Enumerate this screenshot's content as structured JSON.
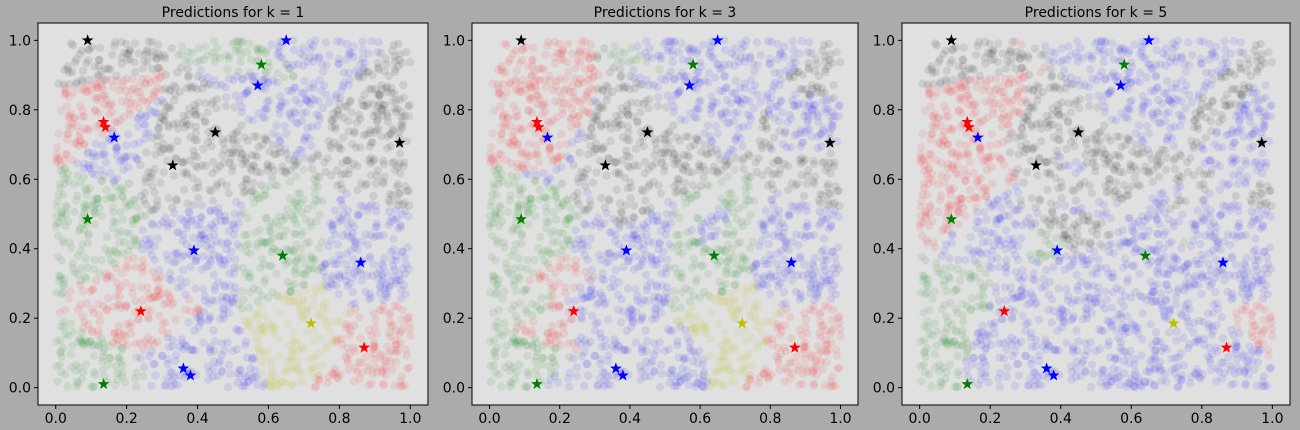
{
  "figure": {
    "background": "#ababab",
    "panel_background": "#e0e0e0",
    "class_colors": {
      "red": "#ff0000",
      "green": "#008000",
      "blue": "#0000ff",
      "black": "#000000",
      "yellow": "#bfbf00"
    }
  },
  "chart_data": [
    {
      "type": "scatter",
      "title": "Predictions for k = 1",
      "k": 1,
      "xlabel": "",
      "ylabel": "",
      "xlim": [
        -0.05,
        1.05
      ],
      "ylim": [
        -0.05,
        1.05
      ],
      "x_ticks": [
        "0.0",
        "0.2",
        "0.4",
        "0.6",
        "0.8",
        "1.0"
      ],
      "y_ticks": [
        "0.0",
        "0.2",
        "0.4",
        "0.6",
        "0.8",
        "1.0"
      ],
      "grid": false,
      "training_points": [
        {
          "x": 0.09,
          "y": 1.0,
          "label": "black"
        },
        {
          "x": 0.65,
          "y": 1.0,
          "label": "blue"
        },
        {
          "x": 0.58,
          "y": 0.93,
          "label": "green"
        },
        {
          "x": 0.57,
          "y": 0.87,
          "label": "blue"
        },
        {
          "x": 0.135,
          "y": 0.765,
          "label": "red"
        },
        {
          "x": 0.14,
          "y": 0.75,
          "label": "red"
        },
        {
          "x": 0.165,
          "y": 0.72,
          "label": "blue"
        },
        {
          "x": 0.45,
          "y": 0.735,
          "label": "black"
        },
        {
          "x": 0.97,
          "y": 0.705,
          "label": "black"
        },
        {
          "x": 0.33,
          "y": 0.64,
          "label": "black"
        },
        {
          "x": 0.09,
          "y": 0.485,
          "label": "green"
        },
        {
          "x": 0.39,
          "y": 0.395,
          "label": "blue"
        },
        {
          "x": 0.64,
          "y": 0.38,
          "label": "green"
        },
        {
          "x": 0.86,
          "y": 0.36,
          "label": "blue"
        },
        {
          "x": 0.24,
          "y": 0.22,
          "label": "red"
        },
        {
          "x": 0.72,
          "y": 0.185,
          "label": "yellow"
        },
        {
          "x": 0.87,
          "y": 0.115,
          "label": "red"
        },
        {
          "x": 0.36,
          "y": 0.055,
          "label": "blue"
        },
        {
          "x": 0.38,
          "y": 0.035,
          "label": "blue"
        },
        {
          "x": 0.135,
          "y": 0.01,
          "label": "green"
        }
      ]
    },
    {
      "type": "scatter",
      "title": "Predictions for k = 3",
      "k": 3,
      "xlabel": "",
      "ylabel": "",
      "xlim": [
        -0.05,
        1.05
      ],
      "ylim": [
        -0.05,
        1.05
      ],
      "x_ticks": [
        "0.0",
        "0.2",
        "0.4",
        "0.6",
        "0.8",
        "1.0"
      ],
      "y_ticks": [
        "0.0",
        "0.2",
        "0.4",
        "0.6",
        "0.8",
        "1.0"
      ],
      "grid": false,
      "training_points": [
        {
          "x": 0.09,
          "y": 1.0,
          "label": "black"
        },
        {
          "x": 0.65,
          "y": 1.0,
          "label": "blue"
        },
        {
          "x": 0.58,
          "y": 0.93,
          "label": "green"
        },
        {
          "x": 0.57,
          "y": 0.87,
          "label": "blue"
        },
        {
          "x": 0.135,
          "y": 0.765,
          "label": "red"
        },
        {
          "x": 0.14,
          "y": 0.75,
          "label": "red"
        },
        {
          "x": 0.165,
          "y": 0.72,
          "label": "blue"
        },
        {
          "x": 0.45,
          "y": 0.735,
          "label": "black"
        },
        {
          "x": 0.97,
          "y": 0.705,
          "label": "black"
        },
        {
          "x": 0.33,
          "y": 0.64,
          "label": "black"
        },
        {
          "x": 0.09,
          "y": 0.485,
          "label": "green"
        },
        {
          "x": 0.39,
          "y": 0.395,
          "label": "blue"
        },
        {
          "x": 0.64,
          "y": 0.38,
          "label": "green"
        },
        {
          "x": 0.86,
          "y": 0.36,
          "label": "blue"
        },
        {
          "x": 0.24,
          "y": 0.22,
          "label": "red"
        },
        {
          "x": 0.72,
          "y": 0.185,
          "label": "yellow"
        },
        {
          "x": 0.87,
          "y": 0.115,
          "label": "red"
        },
        {
          "x": 0.36,
          "y": 0.055,
          "label": "blue"
        },
        {
          "x": 0.38,
          "y": 0.035,
          "label": "blue"
        },
        {
          "x": 0.135,
          "y": 0.01,
          "label": "green"
        }
      ]
    },
    {
      "type": "scatter",
      "title": "Predictions for k = 5",
      "k": 5,
      "xlabel": "",
      "ylabel": "",
      "xlim": [
        -0.05,
        1.05
      ],
      "ylim": [
        -0.05,
        1.05
      ],
      "x_ticks": [
        "0.0",
        "0.2",
        "0.4",
        "0.6",
        "0.8",
        "1.0"
      ],
      "y_ticks": [
        "0.0",
        "0.2",
        "0.4",
        "0.6",
        "0.8",
        "1.0"
      ],
      "grid": false,
      "training_points": [
        {
          "x": 0.09,
          "y": 1.0,
          "label": "black"
        },
        {
          "x": 0.65,
          "y": 1.0,
          "label": "blue"
        },
        {
          "x": 0.58,
          "y": 0.93,
          "label": "green"
        },
        {
          "x": 0.57,
          "y": 0.87,
          "label": "blue"
        },
        {
          "x": 0.135,
          "y": 0.765,
          "label": "red"
        },
        {
          "x": 0.14,
          "y": 0.75,
          "label": "red"
        },
        {
          "x": 0.165,
          "y": 0.72,
          "label": "blue"
        },
        {
          "x": 0.45,
          "y": 0.735,
          "label": "black"
        },
        {
          "x": 0.97,
          "y": 0.705,
          "label": "black"
        },
        {
          "x": 0.33,
          "y": 0.64,
          "label": "black"
        },
        {
          "x": 0.09,
          "y": 0.485,
          "label": "green"
        },
        {
          "x": 0.39,
          "y": 0.395,
          "label": "blue"
        },
        {
          "x": 0.64,
          "y": 0.38,
          "label": "green"
        },
        {
          "x": 0.86,
          "y": 0.36,
          "label": "blue"
        },
        {
          "x": 0.24,
          "y": 0.22,
          "label": "red"
        },
        {
          "x": 0.72,
          "y": 0.185,
          "label": "yellow"
        },
        {
          "x": 0.87,
          "y": 0.115,
          "label": "red"
        },
        {
          "x": 0.36,
          "y": 0.055,
          "label": "blue"
        },
        {
          "x": 0.38,
          "y": 0.035,
          "label": "blue"
        },
        {
          "x": 0.135,
          "y": 0.01,
          "label": "green"
        }
      ]
    }
  ]
}
